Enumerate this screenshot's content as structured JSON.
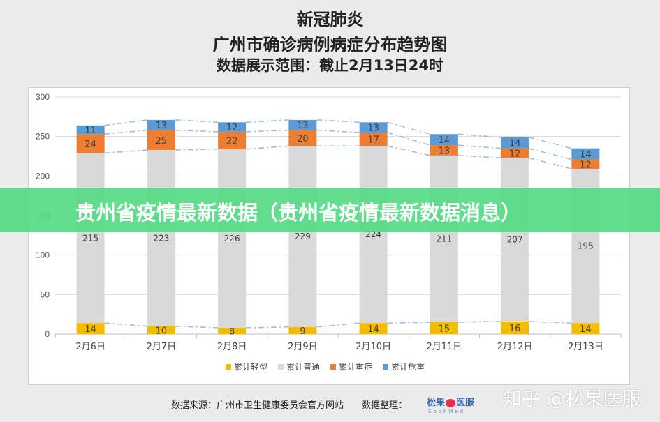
{
  "header": {
    "line1": "新冠肺炎",
    "line2": "广州市确诊病例病症分布趋势图",
    "line3": "数据展示范围：截止2月13日24时"
  },
  "banner": {
    "text": "贵州省疫情最新数据（贵州省疫情最新数据消息）"
  },
  "footer": {
    "source": "数据来源：广州市卫生健康委员会官方网站",
    "organizer_label": "数据整理：",
    "logo_text_left": "松果",
    "logo_text_right": "医服",
    "logo_sub": "SoohMed"
  },
  "watermark": "知乎 @松果医服",
  "chart_data": {
    "type": "bar",
    "stacked": true,
    "categories": [
      "2月6日",
      "2月7日",
      "2月8日",
      "2月9日",
      "2月10日",
      "2月11日",
      "2月12日",
      "2月13日"
    ],
    "series": [
      {
        "name": "累计轻型",
        "color": "#f5bd00",
        "values": [
          14,
          10,
          8,
          9,
          14,
          15,
          16,
          14
        ]
      },
      {
        "name": "累计普通",
        "color": "#d9d9d9",
        "values": [
          215,
          223,
          226,
          229,
          224,
          211,
          207,
          195
        ]
      },
      {
        "name": "累计重症",
        "color": "#ed7d31",
        "values": [
          24,
          25,
          22,
          20,
          17,
          13,
          12,
          12
        ]
      },
      {
        "name": "累计危重",
        "color": "#5b9bd5",
        "values": [
          11,
          13,
          12,
          13,
          13,
          14,
          14,
          14
        ]
      }
    ],
    "ylim": [
      0,
      300
    ],
    "yticks": [
      0,
      50,
      100,
      150,
      200,
      250,
      300
    ],
    "grid": true,
    "legend": "bottom",
    "series_lines": "dash-dot connectors between bars",
    "line_color": "#9fbad6"
  }
}
